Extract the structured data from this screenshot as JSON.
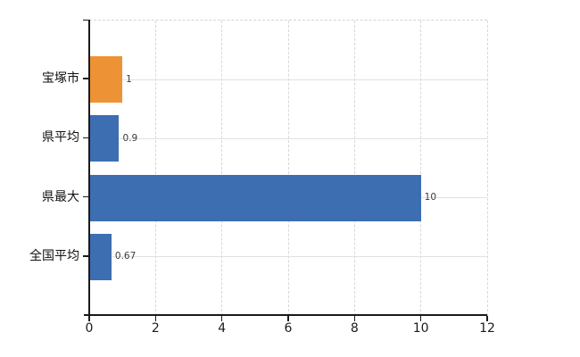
{
  "chart_data": {
    "type": "bar",
    "orientation": "horizontal",
    "title": "",
    "xlabel": "",
    "ylabel": "",
    "categories": [
      "宝塚市",
      "県平均",
      "県最大",
      "全国平均"
    ],
    "values": [
      1,
      0.9,
      10,
      0.67
    ],
    "value_labels": [
      "1",
      "0.9",
      "10",
      "0.67"
    ],
    "bar_colors": [
      "#ED9335",
      "#3D6EB1",
      "#3D6EB1",
      "#3D6EB1"
    ],
    "xlim": [
      0,
      12
    ],
    "x_ticks": [
      0,
      2,
      4,
      6,
      8,
      10,
      12
    ],
    "x_tick_labels": [
      "0",
      "2",
      "4",
      "6",
      "8",
      "10",
      "12"
    ],
    "grid": "on",
    "gridline_style": {
      "vertical": "dashed",
      "horizontal": "solid",
      "top_border": "dashed"
    },
    "legend": "none",
    "colors": {
      "bar_orange": "#ED9335",
      "bar_blue": "#3D6EB1",
      "axis": "#1a1a1a",
      "grid_vertical": "#d7d7d7",
      "grid_horizontal": "#dde3dd",
      "value_label_text": "#3b3b3b",
      "tick_label_text": "#1a1a1a"
    }
  }
}
